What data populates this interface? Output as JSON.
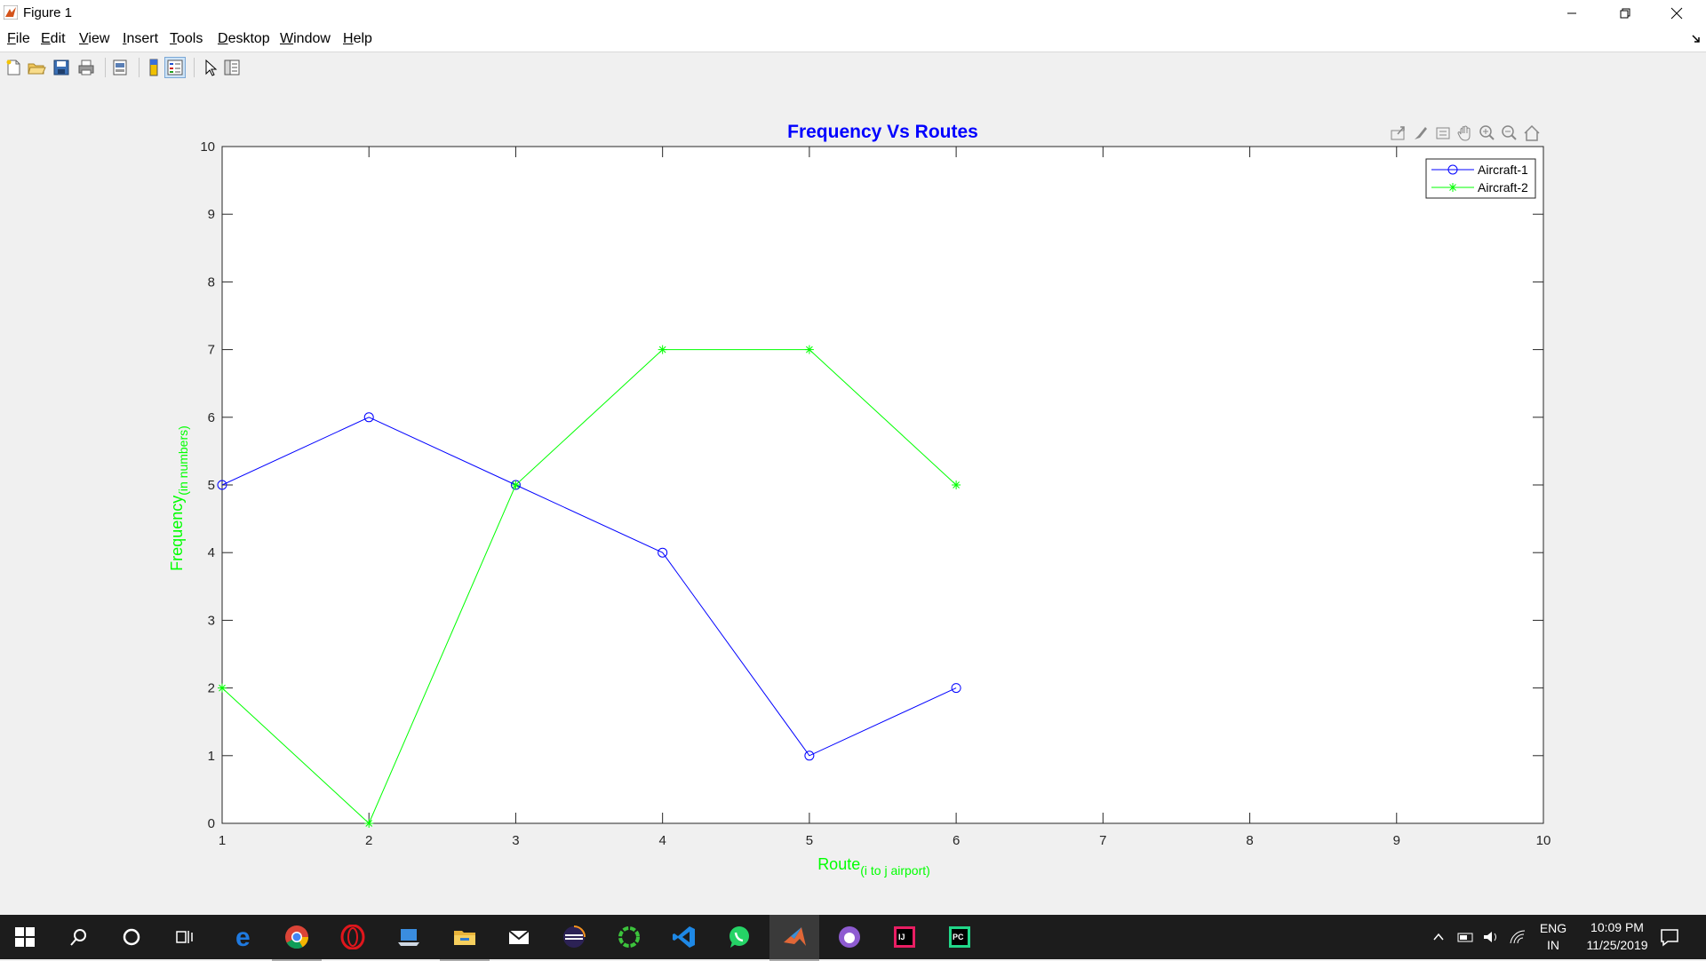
{
  "window": {
    "title": "Figure 1"
  },
  "menu": [
    {
      "label": "File",
      "mnemonic": "F",
      "rest": "ile"
    },
    {
      "label": "Edit",
      "mnemonic": "E",
      "rest": "dit"
    },
    {
      "label": "View",
      "mnemonic": "V",
      "rest": "iew"
    },
    {
      "label": "Insert",
      "mnemonic": "I",
      "rest": "nsert"
    },
    {
      "label": "Tools",
      "mnemonic": "T",
      "rest": "ools"
    },
    {
      "label": "Desktop",
      "mnemonic": "D",
      "rest": "esktop"
    },
    {
      "label": "Window",
      "mnemonic": "W",
      "rest": "indow"
    },
    {
      "label": "Help",
      "mnemonic": "H",
      "rest": "elp"
    }
  ],
  "toolbar_icons": [
    "new-figure-icon",
    "open-file-icon",
    "save-icon",
    "print-icon",
    "print-preview-icon",
    "colorbar-icon",
    "legend-icon",
    "edit-plot-arrow-icon",
    "property-inspector-icon"
  ],
  "axes_toolbar_icons": [
    "export-icon",
    "brush-icon",
    "data-tips-icon",
    "pan-icon",
    "zoom-in-icon",
    "zoom-out-icon",
    "home-icon"
  ],
  "chart_data": {
    "type": "line",
    "title": "Frequency Vs Routes",
    "title_color": "#0000ff",
    "xlabel": "Route",
    "xlabel_sub": "(i to j airport)",
    "ylabel": "Frequency",
    "ylabel_sub": "(in numbers)",
    "label_color": "#00ff00",
    "xlim": [
      1,
      10
    ],
    "ylim": [
      0,
      10
    ],
    "xticks": [
      1,
      2,
      3,
      4,
      5,
      6,
      7,
      8,
      9,
      10
    ],
    "yticks": [
      0,
      1,
      2,
      3,
      4,
      5,
      6,
      7,
      8,
      9,
      10
    ],
    "grid": false,
    "legend_position": "top-right",
    "series": [
      {
        "name": "Aircraft-1",
        "color": "#0000ff",
        "marker": "circle",
        "x": [
          1,
          2,
          3,
          4,
          5,
          6
        ],
        "y": [
          5,
          6,
          5,
          4,
          1,
          2
        ]
      },
      {
        "name": "Aircraft-2",
        "color": "#00ff00",
        "marker": "star",
        "x": [
          1,
          2,
          3,
          4,
          5,
          6
        ],
        "y": [
          2,
          0,
          5,
          7,
          7,
          5
        ]
      }
    ]
  },
  "taskbar": {
    "apps": [
      "windows-start-icon",
      "search-icon",
      "cortana-icon",
      "task-view-icon",
      "edge-icon",
      "chrome-icon",
      "opera-icon",
      "laptop-app-icon",
      "file-explorer-icon",
      "mail-icon",
      "eclipse-icon",
      "green-ring-app-icon",
      "vscode-icon",
      "whatsapp-icon",
      "matlab-icon",
      "github-icon",
      "intellij-icon",
      "pycharm-icon"
    ],
    "tray": {
      "lang_top": "ENG",
      "lang_bottom": "IN",
      "time": "10:09 PM",
      "date": "11/25/2019"
    }
  }
}
